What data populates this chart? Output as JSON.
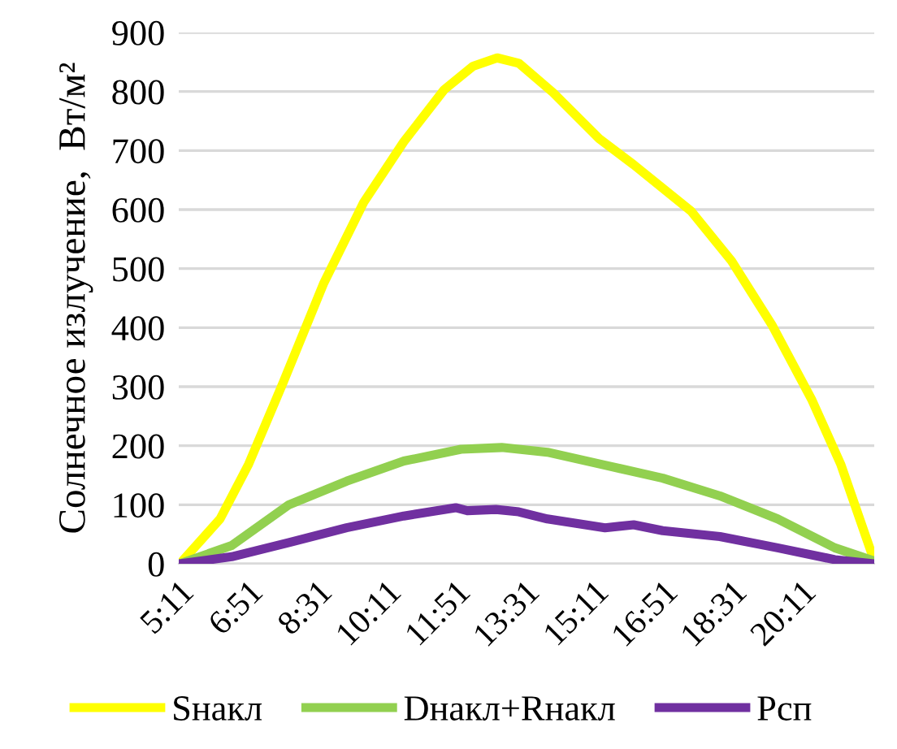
{
  "chart_data": {
    "type": "line",
    "ylabel": "Солнечное излучение,  Вт/м²",
    "xlim": [
      5.1833,
      21.95
    ],
    "ylim": [
      0,
      900
    ],
    "yticks": [
      0,
      100,
      200,
      300,
      400,
      500,
      600,
      700,
      800,
      900
    ],
    "xticks": [
      {
        "value": 5.1833,
        "label": "5:11"
      },
      {
        "value": 6.85,
        "label": "6:51"
      },
      {
        "value": 8.5167,
        "label": "8:31"
      },
      {
        "value": 10.1833,
        "label": "10:11"
      },
      {
        "value": 11.85,
        "label": "11:51"
      },
      {
        "value": 13.5167,
        "label": "13:31"
      },
      {
        "value": 15.1833,
        "label": "15:11"
      },
      {
        "value": 16.85,
        "label": "16:51"
      },
      {
        "value": 18.5167,
        "label": "18:31"
      },
      {
        "value": 20.1833,
        "label": "20:11"
      }
    ],
    "grid": "y",
    "legend": "bottom",
    "marker": "none",
    "line_style": "solid",
    "series": [
      {
        "name": "Sнакл",
        "color": "#ffff00",
        "x": [
          5.21,
          6.18,
          6.87,
          7.7,
          8.67,
          9.64,
          10.61,
          11.58,
          12.28,
          12.86,
          13.38,
          14.21,
          15.32,
          16.15,
          17.54,
          18.51,
          19.48,
          20.45,
          21.14,
          21.94
        ],
        "values": [
          0,
          76,
          169,
          307,
          474,
          612,
          715,
          803,
          843,
          857,
          848,
          798,
          720,
          676,
          597,
          513,
          405,
          277,
          169,
          7
        ]
      },
      {
        "name": "Dнакл+Rнакл",
        "color": "#92d050",
        "x": [
          5.21,
          6.46,
          7.84,
          9.23,
          10.61,
          11.99,
          12.97,
          14.07,
          15.46,
          16.85,
          18.23,
          19.62,
          21.0,
          21.94
        ],
        "values": [
          0,
          31,
          100,
          140,
          174,
          194,
          197,
          189,
          167,
          145,
          115,
          76,
          27,
          5
        ]
      },
      {
        "name": "Pсп",
        "color": "#7030a0",
        "x": [
          5.21,
          6.46,
          7.84,
          9.23,
          10.61,
          11.86,
          12.14,
          12.83,
          13.38,
          14.07,
          15.46,
          16.15,
          16.85,
          18.23,
          19.62,
          21.0,
          21.94
        ],
        "values": [
          0,
          12,
          36,
          61,
          81,
          95,
          90,
          92,
          88,
          76,
          61,
          66,
          56,
          46,
          27,
          7,
          0
        ]
      }
    ]
  }
}
